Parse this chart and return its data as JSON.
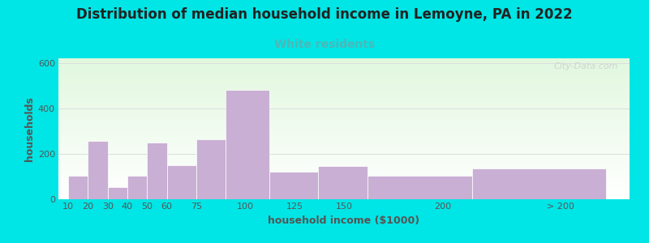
{
  "title": "Distribution of median household income in Lemoyne, PA in 2022",
  "subtitle": "White residents",
  "xlabel": "household income ($1000)",
  "ylabel": "households",
  "background_color": "#00e5e5",
  "bar_color": "#c9afd4",
  "title_fontsize": 12,
  "subtitle_fontsize": 10,
  "subtitle_color": "#4db8b8",
  "axis_label_fontsize": 9,
  "tick_fontsize": 8,
  "ylim": [
    0,
    620
  ],
  "yticks": [
    0,
    200,
    400,
    600
  ],
  "categories": [
    "10",
    "20",
    "30",
    "40",
    "50",
    "60",
    "75",
    "100",
    "125",
    "150",
    "200",
    "> 200"
  ],
  "values": [
    105,
    255,
    55,
    105,
    250,
    150,
    265,
    480,
    120,
    145,
    105,
    135
  ],
  "left_edges": [
    10,
    20,
    30,
    40,
    50,
    60,
    75,
    90,
    112,
    137,
    162,
    215
  ],
  "bar_widths": [
    10,
    10,
    10,
    10,
    10,
    15,
    15,
    22,
    25,
    25,
    53,
    68
  ],
  "xtick_positions": [
    10,
    20,
    30,
    40,
    50,
    60,
    75,
    100,
    125,
    150,
    200,
    260
  ],
  "xtick_labels": [
    "10",
    "20",
    "30",
    "40",
    "50",
    "60",
    "75",
    "100",
    "125",
    "150",
    "200",
    "> 200"
  ],
  "xlim": [
    5,
    295
  ],
  "watermark": "City-Data.com",
  "grid_color": "#dddddd",
  "tick_color": "#555555"
}
